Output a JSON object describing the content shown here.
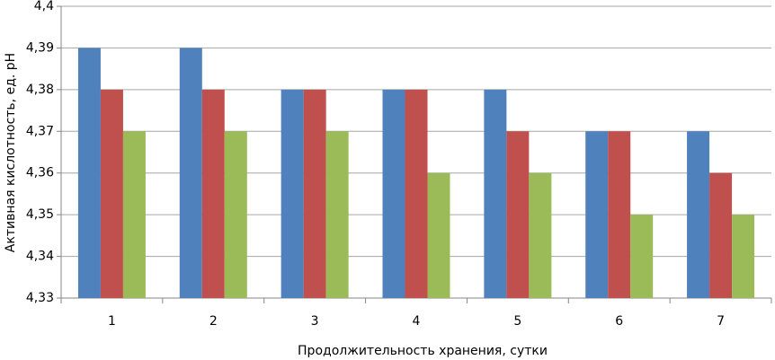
{
  "chart_data": {
    "type": "bar",
    "x_label": "Продолжительность хранения, сутки",
    "y_label": "Активная кислотность, ед. pH",
    "categories": [
      "1",
      "2",
      "3",
      "4",
      "5",
      "6",
      "7"
    ],
    "series": [
      {
        "color": "#4f81bd",
        "values": [
          4.39,
          4.39,
          4.38,
          4.38,
          4.38,
          4.37,
          4.37
        ]
      },
      {
        "color": "#c0504d",
        "values": [
          4.38,
          4.38,
          4.38,
          4.38,
          4.37,
          4.37,
          4.36
        ]
      },
      {
        "color": "#9bbb59",
        "values": [
          4.37,
          4.37,
          4.37,
          4.36,
          4.36,
          4.35,
          4.35
        ]
      }
    ],
    "ylim": [
      4.33,
      4.4
    ],
    "yticks": [
      {
        "value": 4.33,
        "label": "4,33"
      },
      {
        "value": 4.34,
        "label": "4,34"
      },
      {
        "value": 4.35,
        "label": "4,35"
      },
      {
        "value": 4.36,
        "label": "4,36"
      },
      {
        "value": 4.37,
        "label": "4,37"
      },
      {
        "value": 4.38,
        "label": "4,38"
      },
      {
        "value": 4.39,
        "label": "4,39"
      },
      {
        "value": 4.4,
        "label": "4,4"
      }
    ],
    "grid": true
  }
}
